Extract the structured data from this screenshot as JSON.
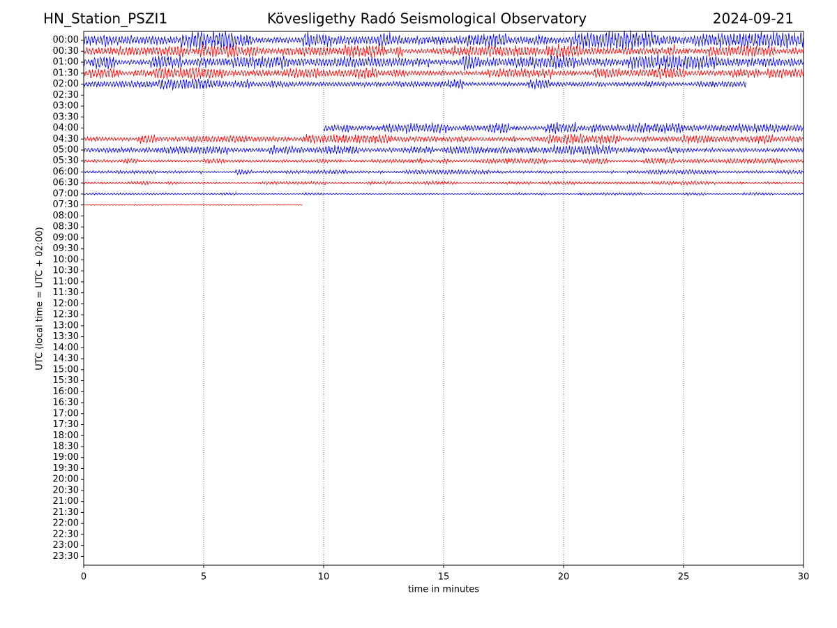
{
  "chart_data": {
    "type": "helicorder",
    "station": "HN_Station_PSZI1",
    "title": "Kövesligethy Radó Seismological Observatory",
    "date": "2024-09-21",
    "xlabel": "time in minutes",
    "ylabel": "UTC (local time = UTC + 02:00)",
    "xlim": [
      0,
      30
    ],
    "xticks": [
      0,
      5,
      10,
      15,
      20,
      25,
      30
    ],
    "ylim": [
      23.9,
      -0.4
    ],
    "yticks": [
      {
        "value": 0,
        "label": "00:00"
      },
      {
        "value": 0.5,
        "label": "00:30"
      },
      {
        "value": 1,
        "label": "01:00"
      },
      {
        "value": 1.5,
        "label": "01:30"
      },
      {
        "value": 2,
        "label": "02:00"
      },
      {
        "value": 2.5,
        "label": "02:30"
      },
      {
        "value": 3,
        "label": "03:00"
      },
      {
        "value": 3.5,
        "label": "03:30"
      },
      {
        "value": 4,
        "label": "04:00"
      },
      {
        "value": 4.5,
        "label": "04:30"
      },
      {
        "value": 5,
        "label": "05:00"
      },
      {
        "value": 5.5,
        "label": "05:30"
      },
      {
        "value": 6,
        "label": "06:00"
      },
      {
        "value": 6.5,
        "label": "06:30"
      },
      {
        "value": 7,
        "label": "07:00"
      },
      {
        "value": 7.5,
        "label": "07:30"
      },
      {
        "value": 8,
        "label": "08:00"
      },
      {
        "value": 8.5,
        "label": "08:30"
      },
      {
        "value": 9,
        "label": "09:00"
      },
      {
        "value": 9.5,
        "label": "09:30"
      },
      {
        "value": 10,
        "label": "10:00"
      },
      {
        "value": 10.5,
        "label": "10:30"
      },
      {
        "value": 11,
        "label": "11:00"
      },
      {
        "value": 11.5,
        "label": "11:30"
      },
      {
        "value": 12,
        "label": "12:00"
      },
      {
        "value": 12.5,
        "label": "12:30"
      },
      {
        "value": 13,
        "label": "13:00"
      },
      {
        "value": 13.5,
        "label": "13:30"
      },
      {
        "value": 14,
        "label": "14:00"
      },
      {
        "value": 14.5,
        "label": "14:30"
      },
      {
        "value": 15,
        "label": "15:00"
      },
      {
        "value": 15.5,
        "label": "15:30"
      },
      {
        "value": 16,
        "label": "16:00"
      },
      {
        "value": 16.5,
        "label": "16:30"
      },
      {
        "value": 17,
        "label": "17:00"
      },
      {
        "value": 17.5,
        "label": "17:30"
      },
      {
        "value": 18,
        "label": "18:00"
      },
      {
        "value": 18.5,
        "label": "18:30"
      },
      {
        "value": 19,
        "label": "19:00"
      },
      {
        "value": 19.5,
        "label": "19:30"
      },
      {
        "value": 20,
        "label": "20:00"
      },
      {
        "value": 20.5,
        "label": "20:30"
      },
      {
        "value": 21,
        "label": "21:00"
      },
      {
        "value": 21.5,
        "label": "21:30"
      },
      {
        "value": 22,
        "label": "22:00"
      },
      {
        "value": 22.5,
        "label": "22:30"
      },
      {
        "value": 23,
        "label": "23:00"
      },
      {
        "value": 23.5,
        "label": "23:30"
      }
    ],
    "grid": "x",
    "traces": [
      {
        "row": 0,
        "color": "#0000ff",
        "amplitude": 0.48,
        "xstart": 0,
        "xend": 30
      },
      {
        "row": 0.5,
        "color": "#ff0000",
        "amplitude": 0.35,
        "xstart": 0,
        "xend": 30
      },
      {
        "row": 1,
        "color": "#0000ff",
        "amplitude": 0.4,
        "xstart": 0,
        "xend": 30
      },
      {
        "row": 1.5,
        "color": "#ff0000",
        "amplitude": 0.3,
        "xstart": 0,
        "xend": 30
      },
      {
        "row": 2,
        "color": "#0000ff",
        "amplitude": 0.3,
        "xstart": 0,
        "xend": 27.6
      },
      {
        "row": 4,
        "color": "#0000ff",
        "amplitude": 0.32,
        "xstart": 10,
        "xend": 30
      },
      {
        "row": 4.5,
        "color": "#ff0000",
        "amplitude": 0.25,
        "xstart": 0,
        "xend": 30
      },
      {
        "row": 5,
        "color": "#0000ff",
        "amplitude": 0.25,
        "xstart": 0,
        "xend": 30
      },
      {
        "row": 5.5,
        "color": "#ff0000",
        "amplitude": 0.18,
        "xstart": 0,
        "xend": 30
      },
      {
        "row": 6,
        "color": "#0000ff",
        "amplitude": 0.12,
        "xstart": 0,
        "xend": 30
      },
      {
        "row": 6.5,
        "color": "#ff0000",
        "amplitude": 0.1,
        "xstart": 0,
        "xend": 30
      },
      {
        "row": 7,
        "color": "#0000ff",
        "amplitude": 0.08,
        "xstart": 0,
        "xend": 30
      },
      {
        "row": 7.5,
        "color": "#ff0000",
        "amplitude": 0.03,
        "xstart": 0,
        "xend": 9.1
      }
    ]
  }
}
